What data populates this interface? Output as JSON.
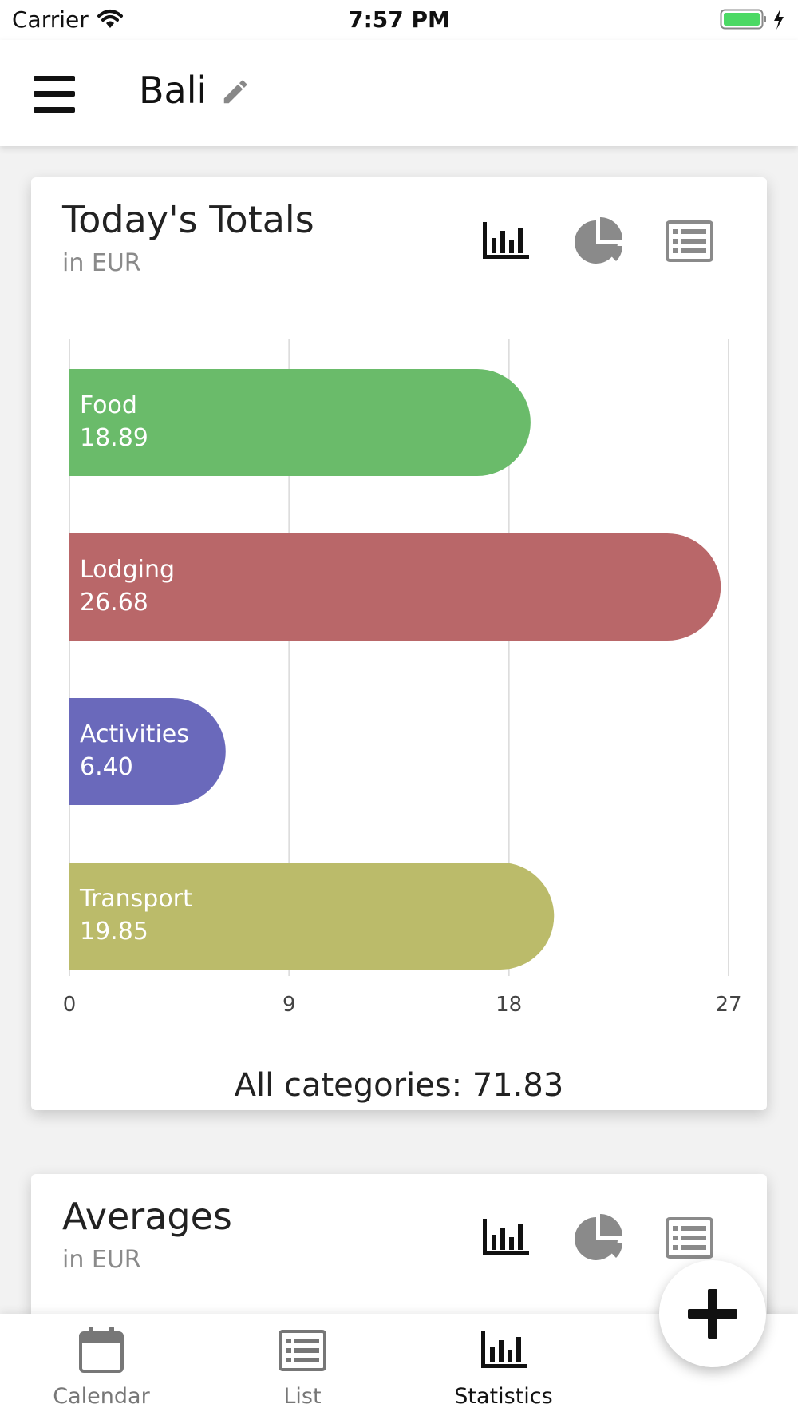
{
  "status_bar": {
    "carrier": "Carrier",
    "time": "7:57 PM"
  },
  "header": {
    "title": "Bali"
  },
  "totals_card": {
    "title": "Today's Totals",
    "subtitle": "in EUR",
    "total_label": "All categories: 71.83"
  },
  "averages_card": {
    "title": "Averages",
    "subtitle": "in EUR"
  },
  "chart_data": {
    "type": "bar",
    "orientation": "horizontal",
    "categories": [
      "Food",
      "Lodging",
      "Activities",
      "Transport"
    ],
    "values": [
      18.89,
      26.68,
      6.4,
      19.85
    ],
    "value_labels": [
      "18.89",
      "26.68",
      "6.40",
      "19.85"
    ],
    "colors": [
      "#6abb6a",
      "#b96769",
      "#6a69bb",
      "#bbbb6a"
    ],
    "xlim": [
      0,
      27
    ],
    "x_ticks": [
      "0",
      "9",
      "18",
      "27"
    ],
    "grid": true
  },
  "view_icons": [
    "bar-chart-icon",
    "pie-chart-icon",
    "list-icon"
  ],
  "bottom_nav": {
    "items": [
      {
        "label": "Calendar",
        "icon": "calendar-icon",
        "active": false
      },
      {
        "label": "List",
        "icon": "list-icon",
        "active": false
      },
      {
        "label": "Statistics",
        "icon": "bar-chart-icon",
        "active": true
      }
    ]
  },
  "fab": {
    "icon": "plus-icon"
  },
  "colors": {
    "icon_active": "#111111",
    "icon_inactive": "#8a8a8a",
    "nav_inactive": "#777777"
  }
}
